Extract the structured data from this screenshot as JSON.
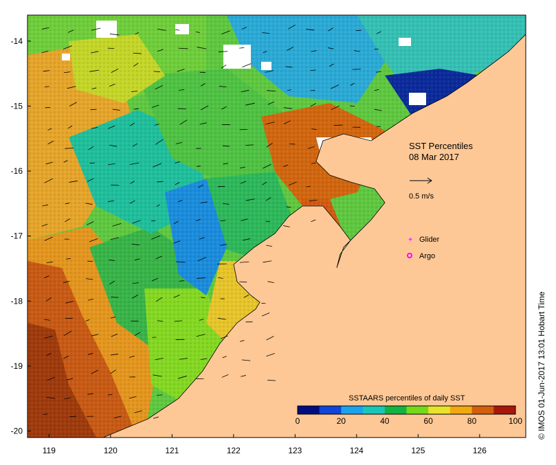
{
  "map": {
    "title": "SST Percentiles",
    "date": "08 Mar 2017",
    "lon_ticks": [
      "119",
      "120",
      "121",
      "122",
      "123",
      "124",
      "125",
      "126"
    ],
    "lat_ticks": [
      "-14",
      "-15",
      "-16",
      "-17",
      "-18",
      "-19",
      "-20"
    ],
    "lon_range": [
      118.65,
      126.75
    ],
    "lat_range": [
      -20.1,
      -13.6
    ],
    "scale_arrow_label": "0.5 m/s",
    "legend": {
      "glider_label": "Glider",
      "argo_label": "Argo",
      "glider_color": "#ff33ff",
      "argo_color": "#ff00ff"
    },
    "land_color": "#fdc896",
    "colorbar": {
      "title": "SSTAARS percentiles of daily SST",
      "tick_labels": [
        "0",
        "20",
        "40",
        "60",
        "80",
        "100"
      ],
      "colors": [
        "#000d7f",
        "#1144d8",
        "#1aa2ee",
        "#18c7b6",
        "#12b342",
        "#74d91b",
        "#e8e32a",
        "#f2a90f",
        "#d45f0a",
        "#a8170a"
      ]
    },
    "credit": "IMOS 01-Jun-2017 13:01 Hobart Time",
    "copyright_symbol": "©"
  }
}
